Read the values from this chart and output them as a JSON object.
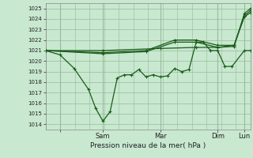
{
  "background_color": "#c8e8d0",
  "grid_color": "#99bb99",
  "line_color": "#1a5c1a",
  "marker_color": "#1a5c1a",
  "title": "Pression niveau de la mer( hPa )",
  "ylabel_values": [
    1014,
    1015,
    1016,
    1017,
    1018,
    1019,
    1020,
    1021,
    1022,
    1023,
    1024,
    1025
  ],
  "ylim": [
    1013.5,
    1025.5
  ],
  "xlim": [
    0.0,
    1.0
  ],
  "xtick_positions": [
    0.07,
    0.28,
    0.56,
    0.84,
    0.97
  ],
  "xtick_labels": [
    "",
    "Sam",
    "Mar",
    "Dim",
    "Lun"
  ],
  "vline_positions": [
    0.07,
    0.28,
    0.56,
    0.84,
    0.97
  ],
  "series1_x": [
    0.0,
    0.07,
    0.14,
    0.21,
    0.245,
    0.28,
    0.315,
    0.35,
    0.385,
    0.42,
    0.455,
    0.49,
    0.525,
    0.56,
    0.595,
    0.63,
    0.665,
    0.7,
    0.735,
    0.77,
    0.805,
    0.84,
    0.875,
    0.91,
    0.97,
    1.0
  ],
  "series1_y": [
    1021.0,
    1020.6,
    1019.3,
    1017.3,
    1015.5,
    1014.3,
    1015.2,
    1018.4,
    1018.7,
    1018.7,
    1019.2,
    1018.5,
    1018.7,
    1018.5,
    1018.6,
    1019.3,
    1019.0,
    1019.2,
    1021.8,
    1021.8,
    1021.0,
    1021.0,
    1019.5,
    1019.5,
    1021.0,
    1021.0
  ],
  "series2_x": [
    0.0,
    0.28,
    0.56,
    0.735,
    0.84,
    0.92,
    0.97,
    1.0
  ],
  "series2_y": [
    1021.0,
    1021.0,
    1021.2,
    1021.3,
    1021.3,
    1021.4,
    1024.5,
    1025.0
  ],
  "series3_x": [
    0.0,
    0.28,
    0.49,
    0.63,
    0.735,
    0.84,
    0.92,
    0.97,
    1.0
  ],
  "series3_y": [
    1021.0,
    1020.8,
    1021.0,
    1022.0,
    1022.0,
    1021.5,
    1021.5,
    1024.3,
    1024.8
  ],
  "series4_x": [
    0.0,
    0.28,
    0.49,
    0.63,
    0.735,
    0.84,
    0.92,
    0.97,
    1.0
  ],
  "series4_y": [
    1021.0,
    1020.7,
    1020.9,
    1021.8,
    1021.8,
    1021.3,
    1021.5,
    1024.2,
    1024.6
  ]
}
